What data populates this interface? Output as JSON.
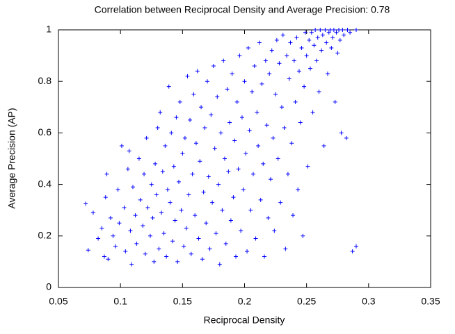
{
  "chart_data": {
    "type": "scatter",
    "title": "Correlation between Reciprocal Density and Average Precision: 0.78",
    "x_label": "Reciprocal Density",
    "y_label": "Average Precision (AP)",
    "color": "#0000ff",
    "xlim": [
      0.05,
      0.35
    ],
    "xticks": [
      0.05,
      0.1,
      0.15,
      0.2,
      0.25,
      0.3,
      0.35
    ],
    "ylim": [
      0,
      1
    ],
    "yticks": [
      0,
      0.2,
      0.4,
      0.6,
      0.8,
      1
    ],
    "x": [
      0.072,
      0.074,
      0.078,
      0.082,
      0.085,
      0.087,
      0.088,
      0.089,
      0.09,
      0.092,
      0.094,
      0.096,
      0.098,
      0.099,
      0.101,
      0.103,
      0.104,
      0.106,
      0.107,
      0.108,
      0.109,
      0.11,
      0.112,
      0.113,
      0.115,
      0.116,
      0.118,
      0.119,
      0.12,
      0.121,
      0.122,
      0.124,
      0.125,
      0.126,
      0.127,
      0.128,
      0.129,
      0.13,
      0.131,
      0.132,
      0.133,
      0.134,
      0.135,
      0.136,
      0.137,
      0.138,
      0.139,
      0.14,
      0.141,
      0.142,
      0.143,
      0.144,
      0.145,
      0.146,
      0.147,
      0.148,
      0.149,
      0.15,
      0.151,
      0.152,
      0.153,
      0.154,
      0.155,
      0.156,
      0.157,
      0.158,
      0.159,
      0.16,
      0.161,
      0.162,
      0.163,
      0.164,
      0.165,
      0.166,
      0.167,
      0.168,
      0.169,
      0.17,
      0.171,
      0.172,
      0.173,
      0.174,
      0.175,
      0.176,
      0.177,
      0.178,
      0.179,
      0.18,
      0.181,
      0.182,
      0.183,
      0.184,
      0.185,
      0.186,
      0.187,
      0.188,
      0.189,
      0.19,
      0.191,
      0.192,
      0.193,
      0.194,
      0.195,
      0.196,
      0.197,
      0.198,
      0.199,
      0.2,
      0.201,
      0.202,
      0.203,
      0.204,
      0.205,
      0.206,
      0.207,
      0.208,
      0.209,
      0.21,
      0.211,
      0.212,
      0.213,
      0.214,
      0.215,
      0.216,
      0.217,
      0.218,
      0.219,
      0.22,
      0.221,
      0.222,
      0.223,
      0.224,
      0.225,
      0.226,
      0.227,
      0.228,
      0.229,
      0.23,
      0.231,
      0.232,
      0.233,
      0.234,
      0.235,
      0.236,
      0.237,
      0.238,
      0.239,
      0.24,
      0.241,
      0.242,
      0.243,
      0.244,
      0.245,
      0.246,
      0.247,
      0.248,
      0.249,
      0.25,
      0.251,
      0.252,
      0.253,
      0.254,
      0.255,
      0.256,
      0.257,
      0.258,
      0.259,
      0.26,
      0.261,
      0.262,
      0.263,
      0.264,
      0.265,
      0.266,
      0.267,
      0.268,
      0.269,
      0.27,
      0.271,
      0.272,
      0.273,
      0.274,
      0.275,
      0.276,
      0.277,
      0.278,
      0.279,
      0.28,
      0.282,
      0.283,
      0.285,
      0.287,
      0.29,
      0.29
    ],
    "values": [
      0.325,
      0.145,
      0.29,
      0.19,
      0.23,
      0.12,
      0.35,
      0.44,
      0.11,
      0.27,
      0.2,
      0.16,
      0.38,
      0.25,
      0.55,
      0.31,
      0.14,
      0.46,
      0.53,
      0.22,
      0.09,
      0.39,
      0.28,
      0.17,
      0.5,
      0.34,
      0.24,
      0.44,
      0.13,
      0.58,
      0.31,
      0.2,
      0.4,
      0.27,
      0.1,
      0.48,
      0.36,
      0.62,
      0.15,
      0.68,
      0.29,
      0.45,
      0.21,
      0.55,
      0.12,
      0.38,
      0.78,
      0.33,
      0.6,
      0.18,
      0.47,
      0.26,
      0.66,
      0.1,
      0.41,
      0.72,
      0.3,
      0.52,
      0.16,
      0.58,
      0.23,
      0.82,
      0.36,
      0.65,
      0.13,
      0.44,
      0.75,
      0.28,
      0.56,
      0.84,
      0.19,
      0.49,
      0.7,
      0.11,
      0.37,
      0.62,
      0.25,
      0.8,
      0.43,
      0.15,
      0.67,
      0.33,
      0.86,
      0.54,
      0.21,
      0.74,
      0.4,
      0.09,
      0.6,
      0.3,
      0.88,
      0.5,
      0.17,
      0.77,
      0.45,
      0.64,
      0.26,
      0.83,
      0.35,
      0.57,
      0.12,
      0.72,
      0.46,
      0.9,
      0.22,
      0.66,
      0.38,
      0.8,
      0.52,
      0.14,
      0.93,
      0.61,
      0.3,
      0.76,
      0.44,
      0.86,
      0.19,
      0.68,
      0.55,
      0.95,
      0.34,
      0.79,
      0.48,
      0.12,
      0.88,
      0.63,
      0.27,
      0.83,
      0.42,
      0.92,
      0.58,
      0.22,
      0.75,
      0.96,
      0.5,
      0.87,
      0.33,
      0.7,
      0.98,
      0.62,
      0.15,
      0.9,
      0.44,
      0.81,
      0.95,
      0.56,
      0.28,
      0.88,
      0.72,
      0.97,
      0.38,
      0.84,
      0.64,
      0.93,
      0.2,
      0.78,
      0.99,
      0.9,
      0.47,
      0.96,
      0.85,
      0.99,
      0.68,
      0.94,
      1.0,
      0.88,
      0.97,
      0.76,
      1.0,
      0.92,
      0.98,
      0.55,
      1.0,
      0.95,
      0.83,
      0.99,
      1.0,
      0.93,
      0.97,
      1.0,
      0.72,
      0.99,
      0.91,
      1.0,
      0.96,
      0.6,
      1.0,
      0.98,
      0.58,
      1.0,
      0.99,
      0.14,
      0.16,
      1.0
    ]
  }
}
